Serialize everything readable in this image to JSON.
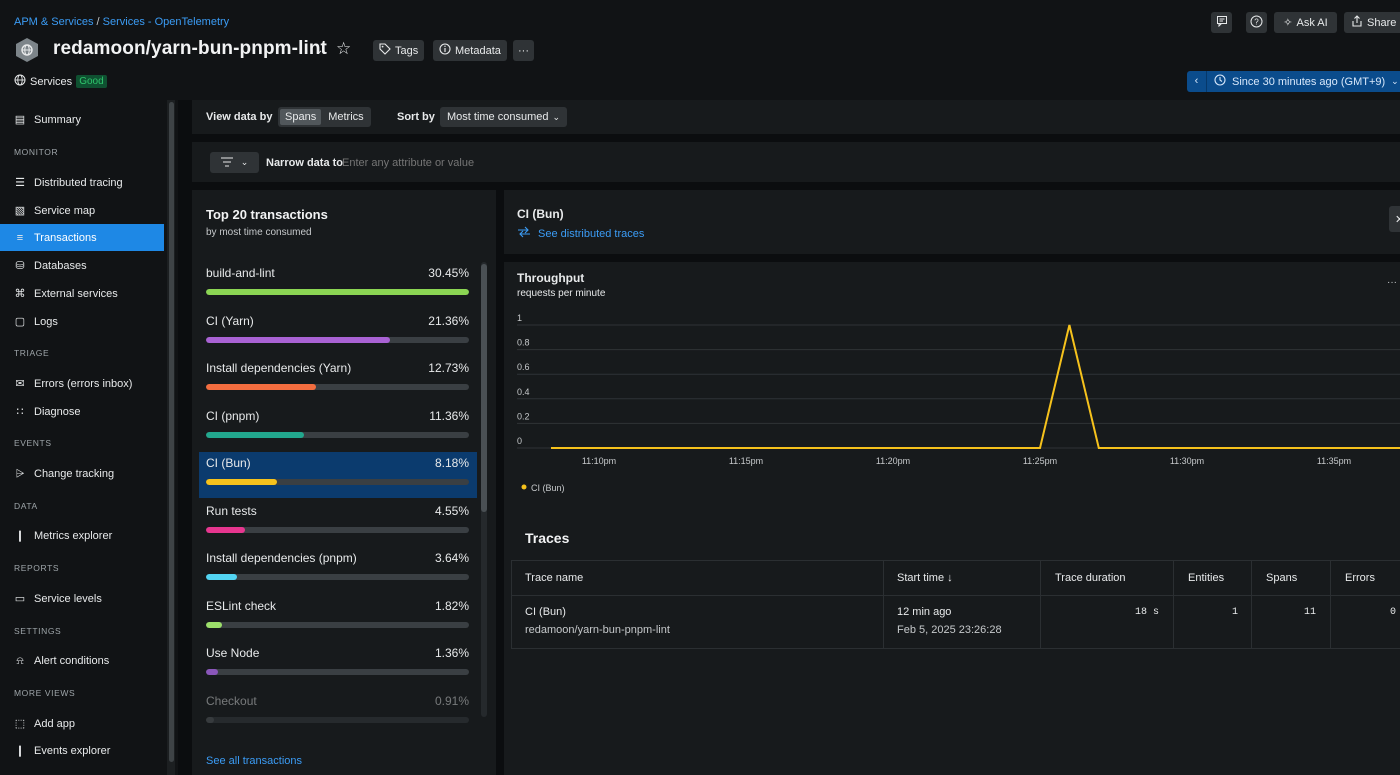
{
  "header": {
    "breadcrumb": [
      "APM & Services",
      "Services - OpenTelemetry"
    ],
    "breadcrumb_sep": " / ",
    "entity_name": "redamoon/yarn-bun-pnpm-lint",
    "tags_label": "Tags",
    "metadata_label": "Metadata",
    "more_label": "···",
    "services_label": "Services",
    "health_badge": "Good",
    "ask_ai_label": "Ask AI",
    "share_label": "Share",
    "time_range": "Since 30 minutes ago (GMT+9)"
  },
  "sidebar": {
    "items": [
      {
        "section": "",
        "label": "Summary",
        "icon": "summary-icon",
        "active": false
      },
      {
        "section": "MONITOR",
        "label": "Distributed tracing",
        "icon": "tracing-icon",
        "active": false
      },
      {
        "section": "",
        "label": "Service map",
        "icon": "map-icon",
        "active": false
      },
      {
        "section": "",
        "label": "Transactions",
        "icon": "transactions-icon",
        "active": true
      },
      {
        "section": "",
        "label": "Databases",
        "icon": "database-icon",
        "active": false
      },
      {
        "section": "",
        "label": "External services",
        "icon": "external-services-icon",
        "active": false
      },
      {
        "section": "",
        "label": "Logs",
        "icon": "logs-icon",
        "active": false
      },
      {
        "section": "TRIAGE",
        "label": "Errors (errors inbox)",
        "icon": "errors-inbox-icon",
        "active": false
      },
      {
        "section": "",
        "label": "Diagnose",
        "icon": "diagnose-icon",
        "active": false
      },
      {
        "section": "EVENTS",
        "label": "Change tracking",
        "icon": "change-tracking-icon",
        "active": false
      },
      {
        "section": "DATA",
        "label": "Metrics explorer",
        "icon": "metrics-explorer-icon",
        "active": false
      },
      {
        "section": "REPORTS",
        "label": "Service levels",
        "icon": "service-levels-icon",
        "active": false
      },
      {
        "section": "SETTINGS",
        "label": "Alert conditions",
        "icon": "bell-icon",
        "active": false
      },
      {
        "section": "MORE VIEWS",
        "label": "Add app",
        "icon": "add-app-icon",
        "active": false
      },
      {
        "section": "",
        "label": "Events explorer",
        "icon": "events-explorer-icon",
        "active": false
      }
    ]
  },
  "toolbar": {
    "view_by_label": "View data by",
    "view_options": [
      "Spans",
      "Metrics"
    ],
    "view_selected": "Spans",
    "sort_by_label": "Sort by",
    "sort_value": "Most time consumed",
    "narrow_label": "Narrow data to",
    "narrow_placeholder": "Enter any attribute or value"
  },
  "transactions": {
    "title": "Top 20 transactions",
    "subtitle": "by most time consumed",
    "items": [
      {
        "name": "build-and-lint",
        "pct_label": "30.45%",
        "pct": 30.45,
        "color": "#8bd553"
      },
      {
        "name": "CI (Yarn)",
        "pct_label": "21.36%",
        "pct": 21.36,
        "color": "#a962d4"
      },
      {
        "name": "Install dependencies (Yarn)",
        "pct_label": "12.73%",
        "pct": 12.73,
        "color": "#f36d3f"
      },
      {
        "name": "CI (pnpm)",
        "pct_label": "11.36%",
        "pct": 11.36,
        "color": "#22a88e"
      },
      {
        "name": "CI (Bun)",
        "pct_label": "8.18%",
        "pct": 8.18,
        "color": "#f6c21c",
        "selected": true
      },
      {
        "name": "Run tests",
        "pct_label": "4.55%",
        "pct": 4.55,
        "color": "#e7368f"
      },
      {
        "name": "Install dependencies (pnpm)",
        "pct_label": "3.64%",
        "pct": 3.64,
        "color": "#52d4f2"
      },
      {
        "name": "ESLint check",
        "pct_label": "1.82%",
        "pct": 1.82,
        "color": "#9cdf6a"
      },
      {
        "name": "Use Node",
        "pct_label": "1.36%",
        "pct": 1.36,
        "color": "#8a56ba"
      },
      {
        "name": "Checkout",
        "pct_label": "0.91%",
        "pct": 0.91,
        "color": "#5f6468"
      }
    ],
    "see_all_label": "See all transactions"
  },
  "detail": {
    "title": "CI (Bun)",
    "traces_link": "See distributed traces",
    "throughput_title": "Throughput",
    "throughput_subtitle": "requests per minute",
    "more_label": "···",
    "close_label": "✕"
  },
  "chart_data": {
    "type": "line",
    "title": "Throughput",
    "subtitle": "requests per minute",
    "ylim": [
      0,
      1
    ],
    "yticks": [
      "1",
      "0.8",
      "0.6",
      "0.4",
      "0.2",
      "0"
    ],
    "xticks": [
      "11:10pm",
      "11:15pm",
      "11:20pm",
      "11:25pm",
      "11:30pm",
      "11:35pm"
    ],
    "series": [
      {
        "name": "CI (Bun)",
        "color": "#f6c21c",
        "x": [
          "11:09pm",
          "11:25pm",
          "11:26pm",
          "11:27pm",
          "11:37pm"
        ],
        "values": [
          0,
          0,
          1,
          0,
          0
        ]
      }
    ],
    "legend": "bottom-left",
    "grid": true
  },
  "traces": {
    "title": "Traces",
    "columns": [
      "Trace name",
      "Start time ↓",
      "Trace duration",
      "Entities",
      "Spans",
      "Errors"
    ],
    "rows": [
      {
        "name": "CI (Bun)",
        "entity": "redamoon/yarn-bun-pnpm-lint",
        "start_rel": "12 min ago",
        "start_abs": "Feb 5, 2025 23:26:28",
        "duration": "18 s",
        "entities": "1",
        "spans": "11",
        "errors": "0"
      }
    ]
  }
}
